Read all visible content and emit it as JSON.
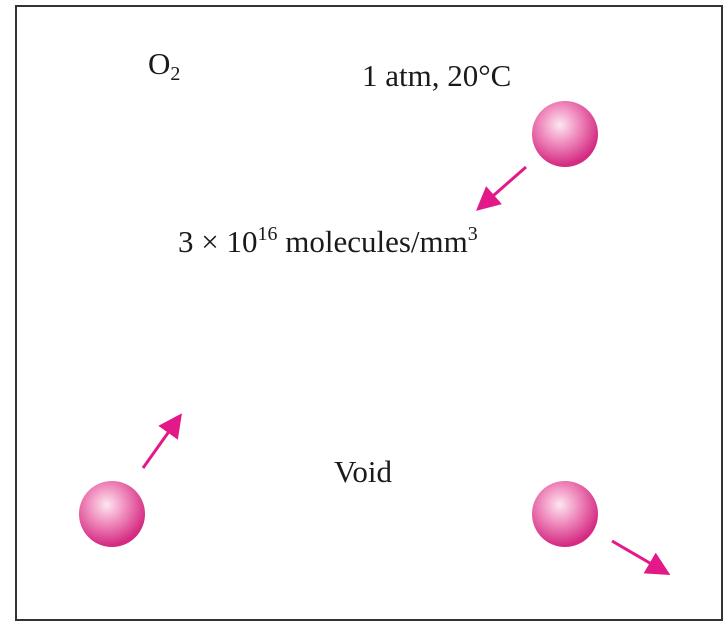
{
  "figure": {
    "gas_label": {
      "symbol": "O",
      "subscript": "2"
    },
    "conditions": "1 atm, 20°C",
    "density": {
      "coefficient": "3 × 10",
      "exponent": "16",
      "unit": " molecules/mm",
      "unit_exponent": "3"
    },
    "void_label": "Void"
  },
  "colors": {
    "molecule": "#e0388f",
    "molecule_highlight": "#fde6f1",
    "arrow": "#e3198a",
    "border": "#333333"
  }
}
